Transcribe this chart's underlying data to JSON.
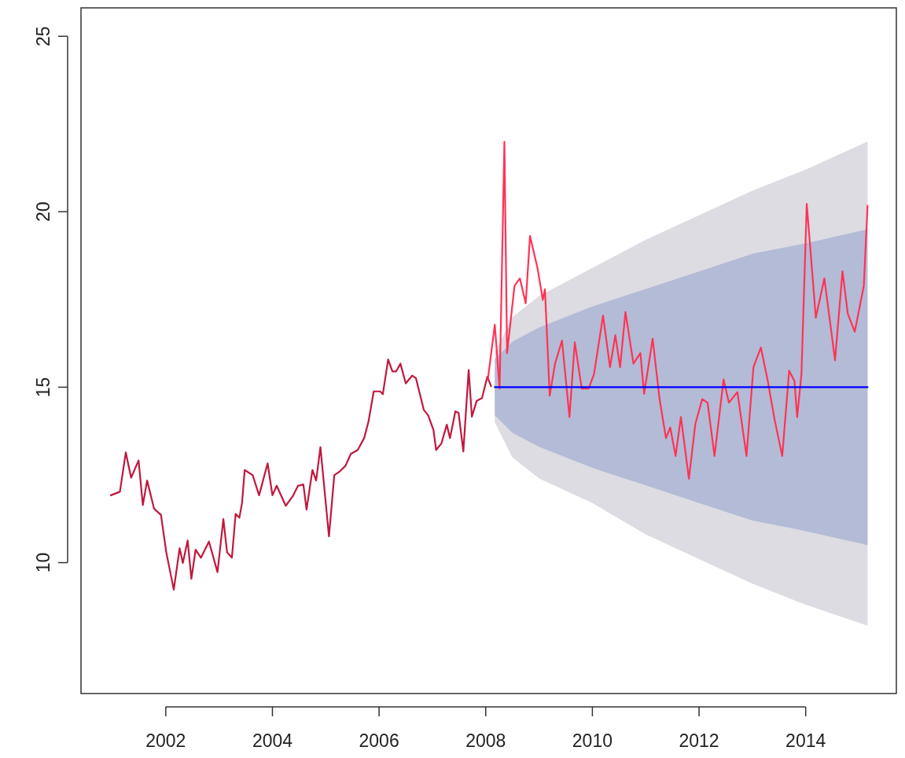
{
  "chart_data": {
    "type": "line",
    "xlim": [
      2000.41,
      2015.7
    ],
    "ylim": [
      6.27,
      25.81
    ],
    "xticks": [
      2002,
      2004,
      2006,
      2008,
      2010,
      2012,
      2014
    ],
    "yticks": [
      10,
      15,
      20,
      25
    ],
    "series": [
      {
        "color": "#c0183c",
        "x": [
          2000.97,
          2001.14,
          2001.25,
          2001.35,
          2001.49,
          2001.57,
          2001.65,
          2001.78,
          2001.91,
          2002.01,
          2002.15,
          2002.26,
          2002.32,
          2002.41,
          2002.48,
          2002.56,
          2002.66,
          2002.81,
          2002.97,
          2003.08,
          2003.15,
          2003.24,
          2003.31,
          2003.38,
          2003.43,
          2003.48,
          2003.63,
          2003.75,
          2003.91,
          2004.0,
          2004.08,
          2004.25,
          2004.38,
          2004.48,
          2004.58,
          2004.64,
          2004.75,
          2004.82,
          2004.9,
          2005.06,
          2005.16,
          2005.27,
          2005.37,
          2005.47,
          2005.6,
          2005.72,
          2005.8,
          2005.9,
          2006.02,
          2006.07,
          2006.17,
          2006.25,
          2006.32,
          2006.4,
          2006.5,
          2006.62,
          2006.69,
          2006.84,
          2006.92,
          2007.02,
          2007.07,
          2007.17,
          2007.27,
          2007.33,
          2007.43,
          2007.49,
          2007.58,
          2007.68,
          2007.74,
          2007.83,
          2007.93,
          2008.03,
          2008.1
        ],
        "values": [
          11.92,
          12.02,
          13.14,
          12.42,
          12.91,
          11.64,
          12.34,
          11.54,
          11.36,
          10.29,
          9.23,
          10.41,
          9.99,
          10.63,
          9.54,
          10.37,
          10.14,
          10.6,
          9.73,
          11.24,
          10.29,
          10.14,
          11.39,
          11.28,
          11.7,
          12.64,
          12.49,
          11.92,
          12.83,
          11.92,
          12.19,
          11.62,
          11.89,
          12.19,
          12.23,
          11.51,
          12.64,
          12.34,
          13.29,
          10.75,
          12.49,
          12.61,
          12.76,
          13.1,
          13.21,
          13.55,
          14.01,
          14.88,
          14.88,
          14.8,
          15.79,
          15.45,
          15.45,
          15.67,
          15.11,
          15.33,
          15.26,
          14.35,
          14.2,
          13.78,
          13.21,
          13.4,
          13.93,
          13.55,
          14.31,
          14.27,
          13.17,
          15.49,
          14.16,
          14.61,
          14.69,
          15.3,
          15.03
        ]
      },
      {
        "color": "#ff3355",
        "x": [
          2008.04,
          2008.17,
          2008.26,
          2008.35,
          2008.4,
          2008.54,
          2008.64,
          2008.75,
          2008.83,
          2008.97,
          2009.07,
          2009.11,
          2009.2,
          2009.3,
          2009.43,
          2009.57,
          2009.67,
          2009.8,
          2009.93,
          2010.03,
          2010.2,
          2010.33,
          2010.43,
          2010.52,
          2010.62,
          2010.77,
          2010.9,
          2010.97,
          2011.13,
          2011.26,
          2011.38,
          2011.46,
          2011.56,
          2011.66,
          2011.81,
          2011.93,
          2012.06,
          2012.16,
          2012.29,
          2012.46,
          2012.56,
          2012.72,
          2012.89,
          2013.02,
          2013.16,
          2013.29,
          2013.42,
          2013.56,
          2013.69,
          2013.79,
          2013.84,
          2013.92,
          2014.02,
          2014.19,
          2014.35,
          2014.55,
          2014.69,
          2014.79,
          2014.92,
          2015.09,
          2015.16
        ],
        "values": [
          15.22,
          16.78,
          14.96,
          21.99,
          15.97,
          17.89,
          18.1,
          17.39,
          19.31,
          18.4,
          17.49,
          17.79,
          14.76,
          15.67,
          16.33,
          14.15,
          16.28,
          14.96,
          14.96,
          15.37,
          17.04,
          15.57,
          16.48,
          15.57,
          17.14,
          15.67,
          15.97,
          14.81,
          16.38,
          14.66,
          13.55,
          13.85,
          13.04,
          14.15,
          12.39,
          13.95,
          14.66,
          14.56,
          13.04,
          15.22,
          14.56,
          14.86,
          13.04,
          15.57,
          16.13,
          15.17,
          14.05,
          13.04,
          15.47,
          15.17,
          14.15,
          15.37,
          20.22,
          16.98,
          18.1,
          15.77,
          18.3,
          17.09,
          16.58,
          17.89,
          20.17
        ]
      },
      {
        "color": "#0000ff",
        "x": [
          2008.17,
          2008.5,
          2009,
          2010,
          2011,
          2012,
          2013,
          2014,
          2015.16
        ],
        "values": [
          15,
          15,
          15,
          15,
          15,
          15,
          15,
          15,
          15
        ],
        "lower": [
          14.0,
          13.0,
          12.4,
          11.7,
          10.8,
          10.1,
          9.4,
          8.8,
          8.2
        ],
        "upper": [
          16.0,
          17.0,
          17.6,
          18.4,
          19.2,
          19.9,
          20.6,
          21.2,
          22.0
        ]
      },
      {
        "color": "#b4bbd6",
        "x": [
          2008.17,
          2008.5,
          2009,
          2010,
          2011,
          2012,
          2013,
          2014,
          2015.16
        ],
        "values": [
          null,
          null,
          null,
          null,
          null,
          null,
          null,
          null,
          null
        ],
        "lower": [
          14.2,
          13.7,
          13.3,
          12.7,
          12.2,
          11.7,
          11.2,
          10.9,
          10.5
        ],
        "upper": [
          15.8,
          16.3,
          16.7,
          17.3,
          17.8,
          18.3,
          18.8,
          19.1,
          19.5
        ]
      }
    ]
  }
}
